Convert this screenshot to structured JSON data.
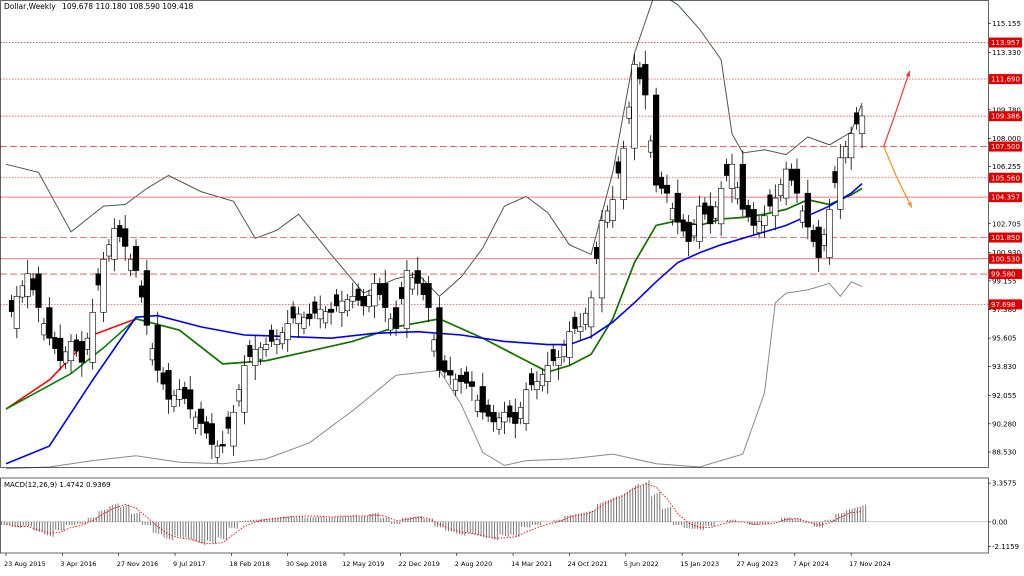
{
  "chart_data": {
    "type": "candlestick",
    "title": "Dollar,Weekly",
    "ohlc_readout": "109.678 110.180 108.590 109.418",
    "x_ticks": [
      "23 Aug 2015",
      "3 Apr 2016",
      "27 Nov 2016",
      "9 Jul 2017",
      "18 Feb 2018",
      "30 Sep 2018",
      "12 May 2019",
      "22 Dec 2019",
      "2 Aug 2020",
      "14 Mar 2021",
      "24 Oct 2021",
      "5 Jun 2022",
      "15 Jan 2023",
      "27 Aug 2023",
      "7 Apr 2024",
      "17 Nov 2024"
    ],
    "y_ticks": [
      115.155,
      113.33,
      109.78,
      108.0,
      106.255,
      102.705,
      100.93,
      99.155,
      97.38,
      95.605,
      93.83,
      92.055,
      90.28,
      88.53
    ],
    "ylim": [
      87.6,
      116.6
    ],
    "price_levels": [
      {
        "label": "113.957",
        "value": 113.957,
        "style": "dotted"
      },
      {
        "label": "111.690",
        "value": 111.69,
        "style": "dotted"
      },
      {
        "label": "109.386",
        "value": 109.386,
        "style": "dotted"
      },
      {
        "label": "107.500",
        "value": 107.5,
        "style": "dashed"
      },
      {
        "label": "105.560",
        "value": 105.56,
        "style": "dotted"
      },
      {
        "label": "104.357",
        "value": 104.357,
        "style": "solid"
      },
      {
        "label": "101.850",
        "value": 101.85,
        "style": "dashed"
      },
      {
        "label": "100.530",
        "value": 100.53,
        "style": "solid"
      },
      {
        "label": "99.580",
        "value": 99.58,
        "style": "dashed"
      },
      {
        "label": "97.698",
        "value": 97.698,
        "style": "dotted"
      }
    ],
    "price_path": [
      [
        0,
        96.2
      ],
      [
        1,
        98.2
      ],
      [
        2,
        99.6
      ],
      [
        3,
        97.5
      ],
      [
        4,
        95.6
      ],
      [
        5,
        94.2
      ],
      [
        6,
        95.4
      ],
      [
        7,
        94.1
      ],
      [
        8,
        97.2
      ],
      [
        9,
        100.5
      ],
      [
        10,
        102.4
      ],
      [
        11,
        101.3
      ],
      [
        12,
        99.8
      ],
      [
        13,
        96.4
      ],
      [
        14,
        93.6
      ],
      [
        15,
        91.8
      ],
      [
        16,
        92.4
      ],
      [
        17,
        91.2
      ],
      [
        18,
        90.3
      ],
      [
        19,
        89.0
      ],
      [
        20,
        88.9
      ],
      [
        21,
        91.0
      ],
      [
        22,
        93.9
      ],
      [
        23,
        94.9
      ],
      [
        24,
        95.2
      ],
      [
        25,
        95.5
      ],
      [
        26,
        96.5
      ],
      [
        27,
        97.1
      ],
      [
        28,
        96.8
      ],
      [
        29,
        97.4
      ],
      [
        30,
        97.2
      ],
      [
        31,
        97.9
      ],
      [
        32,
        98.2
      ],
      [
        33,
        97.6
      ],
      [
        34,
        99.0
      ],
      [
        35,
        97.5
      ],
      [
        36,
        96.2
      ],
      [
        37,
        99.8
      ],
      [
        38,
        99.0
      ],
      [
        39,
        97.5
      ],
      [
        40,
        93.6
      ],
      [
        41,
        93.3
      ],
      [
        42,
        92.9
      ],
      [
        43,
        92.6
      ],
      [
        44,
        91.0
      ],
      [
        45,
        90.4
      ],
      [
        46,
        91.0
      ],
      [
        47,
        90.3
      ],
      [
        48,
        92.4
      ],
      [
        49,
        92.9
      ],
      [
        50,
        93.9
      ],
      [
        51,
        94.4
      ],
      [
        52,
        96.0
      ],
      [
        53,
        96.3
      ],
      [
        54,
        98.1
      ],
      [
        55,
        102.9
      ],
      [
        56,
        104.2
      ],
      [
        57,
        107.4
      ],
      [
        58,
        112.6
      ],
      [
        59,
        110.7
      ],
      [
        60,
        105.1
      ],
      [
        61,
        104.6
      ],
      [
        62,
        102.8
      ],
      [
        63,
        101.6
      ],
      [
        64,
        103.8
      ],
      [
        65,
        102.7
      ],
      [
        66,
        104.9
      ],
      [
        67,
        106.4
      ],
      [
        68,
        103.6
      ],
      [
        69,
        102.6
      ],
      [
        70,
        103.2
      ],
      [
        71,
        104.3
      ],
      [
        72,
        106.1
      ],
      [
        73,
        104.6
      ],
      [
        74,
        102.5
      ],
      [
        75,
        100.6
      ],
      [
        76,
        103.6
      ],
      [
        77,
        106.8
      ],
      [
        78,
        108.3
      ],
      [
        79,
        109.4
      ]
    ],
    "moving_averages": [
      {
        "color": "#ff0000",
        "points": [
          [
            0,
            91.2
          ],
          [
            4,
            93.0
          ],
          [
            8,
            95.8
          ],
          [
            12,
            96.8
          ],
          [
            16,
            96.1
          ],
          [
            20,
            94.0
          ],
          [
            24,
            94.2
          ],
          [
            28,
            94.8
          ],
          [
            32,
            95.4
          ],
          [
            36,
            96.3
          ],
          [
            40,
            96.8
          ],
          [
            44,
            95.6
          ],
          [
            48,
            94.2
          ],
          [
            50,
            93.5
          ],
          [
            52,
            93.9
          ],
          [
            54,
            94.6
          ],
          [
            56,
            96.8
          ],
          [
            58,
            100.3
          ],
          [
            60,
            102.6
          ],
          [
            62,
            102.9
          ],
          [
            64,
            102.6
          ],
          [
            66,
            103.0
          ],
          [
            68,
            103.1
          ],
          [
            70,
            103.3
          ],
          [
            72,
            103.6
          ],
          [
            74,
            104.2
          ],
          [
            76,
            103.9
          ],
          [
            78,
            104.5
          ],
          [
            79,
            104.9
          ]
        ]
      },
      {
        "color": "#008000",
        "points": [
          [
            0,
            91.2
          ],
          [
            3,
            92.3
          ],
          [
            6,
            93.4
          ],
          [
            9,
            95.0
          ],
          [
            12,
            96.8
          ],
          [
            16,
            96.1
          ],
          [
            20,
            94.0
          ],
          [
            24,
            94.2
          ],
          [
            28,
            94.8
          ],
          [
            32,
            95.4
          ],
          [
            36,
            96.3
          ],
          [
            40,
            96.8
          ],
          [
            44,
            95.6
          ],
          [
            48,
            94.2
          ],
          [
            50,
            93.5
          ],
          [
            52,
            93.9
          ],
          [
            54,
            94.6
          ],
          [
            56,
            96.8
          ],
          [
            58,
            100.3
          ],
          [
            60,
            102.6
          ],
          [
            62,
            102.9
          ],
          [
            64,
            102.6
          ],
          [
            66,
            103.0
          ],
          [
            68,
            103.1
          ],
          [
            70,
            103.3
          ],
          [
            72,
            103.6
          ],
          [
            74,
            104.2
          ],
          [
            76,
            103.9
          ],
          [
            78,
            104.5
          ],
          [
            79,
            104.9
          ]
        ]
      },
      {
        "color": "#0000ff",
        "points": [
          [
            0,
            87.8
          ],
          [
            4,
            88.9
          ],
          [
            8,
            93.0
          ],
          [
            12,
            96.9
          ],
          [
            14,
            97.0
          ],
          [
            18,
            96.3
          ],
          [
            22,
            95.8
          ],
          [
            26,
            95.7
          ],
          [
            30,
            95.6
          ],
          [
            34,
            95.9
          ],
          [
            38,
            96.0
          ],
          [
            42,
            95.8
          ],
          [
            46,
            95.4
          ],
          [
            50,
            95.2
          ],
          [
            52,
            95.2
          ],
          [
            54,
            95.7
          ],
          [
            56,
            96.6
          ],
          [
            58,
            97.8
          ],
          [
            60,
            99.1
          ],
          [
            62,
            100.3
          ],
          [
            64,
            100.9
          ],
          [
            66,
            101.4
          ],
          [
            68,
            101.8
          ],
          [
            70,
            102.2
          ],
          [
            72,
            102.6
          ],
          [
            74,
            103.2
          ],
          [
            76,
            103.8
          ],
          [
            78,
            104.6
          ],
          [
            79,
            105.2
          ]
        ]
      }
    ],
    "bollinger_bands": {
      "color": "#555555",
      "upper": [
        [
          0,
          106.4
        ],
        [
          3,
          105.9
        ],
        [
          6,
          102.2
        ],
        [
          9,
          103.8
        ],
        [
          11,
          103.9
        ],
        [
          13,
          104.9
        ],
        [
          15,
          105.7
        ],
        [
          18,
          104.7
        ],
        [
          21,
          104.1
        ],
        [
          23,
          101.8
        ],
        [
          25,
          102.3
        ],
        [
          27,
          103.3
        ],
        [
          30,
          100.8
        ],
        [
          33,
          98.4
        ],
        [
          36,
          99.3
        ],
        [
          38,
          99.6
        ],
        [
          40,
          98.2
        ],
        [
          42,
          99.4
        ],
        [
          44,
          101.2
        ],
        [
          46,
          103.8
        ],
        [
          48,
          104.4
        ],
        [
          50,
          103.4
        ],
        [
          52,
          101.4
        ],
        [
          54,
          100.8
        ],
        [
          56,
          105.9
        ],
        [
          58,
          113.3
        ],
        [
          60,
          117.2
        ],
        [
          62,
          116.3
        ],
        [
          64,
          114.8
        ],
        [
          66,
          112.9
        ],
        [
          67,
          108.3
        ],
        [
          68,
          107.1
        ],
        [
          70,
          107.3
        ],
        [
          72,
          107.0
        ],
        [
          74,
          108.1
        ],
        [
          76,
          107.6
        ],
        [
          78,
          108.4
        ],
        [
          79,
          110.2
        ]
      ],
      "lower": [
        [
          0,
          87.5
        ],
        [
          4,
          87.6
        ],
        [
          8,
          88.0
        ],
        [
          12,
          88.3
        ],
        [
          16,
          87.9
        ],
        [
          20,
          87.8
        ],
        [
          24,
          88.1
        ],
        [
          28,
          89.1
        ],
        [
          32,
          91.1
        ],
        [
          36,
          93.3
        ],
        [
          40,
          93.6
        ],
        [
          42,
          91.5
        ],
        [
          44,
          88.5
        ],
        [
          46,
          87.7
        ],
        [
          48,
          88.0
        ],
        [
          52,
          88.1
        ],
        [
          56,
          88.4
        ],
        [
          60,
          87.8
        ],
        [
          64,
          87.6
        ],
        [
          68,
          88.4
        ],
        [
          70,
          92.2
        ],
        [
          71,
          97.8
        ],
        [
          72,
          98.4
        ],
        [
          74,
          98.6
        ],
        [
          76,
          99.0
        ],
        [
          77,
          98.2
        ],
        [
          78,
          99.1
        ],
        [
          79,
          98.8
        ]
      ],
      "mid": [
        [
          0,
          97.0
        ],
        [
          4,
          96.5
        ],
        [
          8,
          97.0
        ],
        [
          12,
          98.1
        ],
        [
          16,
          98.7
        ],
        [
          20,
          97.5
        ],
        [
          24,
          97.0
        ],
        [
          28,
          97.6
        ],
        [
          32,
          97.8
        ],
        [
          36,
          98.3
        ],
        [
          40,
          97.3
        ],
        [
          44,
          95.4
        ],
        [
          48,
          95.0
        ],
        [
          52,
          95.7
        ],
        [
          56,
          97.0
        ],
        [
          58,
          100.0
        ],
        [
          62,
          102.4
        ],
        [
          66,
          103.3
        ],
        [
          70,
          103.0
        ],
        [
          74,
          104.0
        ],
        [
          78,
          105.2
        ]
      ]
    },
    "projection_arrows": [
      {
        "color": "#ff3333",
        "from": [
          81,
          107.5
        ],
        "mid": [
          82,
          109.4
        ],
        "to": [
          83.4,
          112.2
        ]
      },
      {
        "color": "#ff8c1a",
        "from": [
          81,
          107.5
        ],
        "mid": [
          82.2,
          105.6
        ],
        "to": [
          83.6,
          103.7
        ]
      }
    ],
    "subchart": {
      "label": "MACD(12,26,9) 1.4742 0.9369",
      "y_ticks": [
        3.3575,
        0.0,
        -2.1159
      ],
      "ylim": [
        -2.7,
        3.8
      ],
      "histogram": [
        -0.3,
        -0.5,
        -0.4,
        -0.9,
        -1.3,
        -0.8,
        -0.3,
        -0.2,
        0.4,
        1.1,
        1.6,
        1.5,
        0.8,
        -0.3,
        -1.1,
        -1.6,
        -1.4,
        -1.6,
        -2.0,
        -1.9,
        -1.6,
        -0.6,
        0.1,
        0.2,
        0.3,
        0.4,
        0.5,
        0.5,
        0.4,
        0.5,
        0.4,
        0.5,
        0.6,
        0.5,
        0.8,
        0.4,
        -0.2,
        0.4,
        0.5,
        0.3,
        -0.5,
        -0.9,
        -1.2,
        -1.1,
        -1.4,
        -1.6,
        -1.3,
        -1.3,
        -0.5,
        -0.3,
        0.0,
        0.2,
        0.6,
        0.8,
        1.0,
        1.8,
        2.2,
        2.6,
        3.3,
        3.6,
        2.6,
        1.3,
        -0.3,
        -0.6,
        -0.7,
        -0.4,
        0.0,
        0.2,
        0.0,
        -0.3,
        -0.2,
        0.0,
        0.4,
        0.3,
        -0.1,
        -0.5,
        0.2,
        0.8,
        1.2,
        1.5
      ],
      "signal": [
        -0.2,
        -0.4,
        -0.4,
        -0.7,
        -1.0,
        -0.9,
        -0.5,
        -0.3,
        0.1,
        0.7,
        1.2,
        1.5,
        1.2,
        0.4,
        -0.4,
        -1.1,
        -1.4,
        -1.5,
        -1.8,
        -1.9,
        -1.8,
        -1.1,
        -0.4,
        0.0,
        0.2,
        0.3,
        0.4,
        0.5,
        0.5,
        0.5,
        0.4,
        0.5,
        0.5,
        0.5,
        0.6,
        0.5,
        0.1,
        0.2,
        0.4,
        0.3,
        -0.2,
        -0.6,
        -0.9,
        -1.0,
        -1.2,
        -1.4,
        -1.4,
        -1.3,
        -0.9,
        -0.5,
        -0.2,
        0.0,
        0.4,
        0.6,
        0.8,
        1.4,
        1.9,
        2.3,
        2.9,
        3.3,
        3.0,
        2.0,
        0.7,
        -0.1,
        -0.5,
        -0.5,
        -0.2,
        0.0,
        0.0,
        -0.2,
        -0.2,
        -0.1,
        0.2,
        0.3,
        0.0,
        -0.3,
        -0.1,
        0.4,
        0.8,
        0.9
      ]
    },
    "colors": {
      "grid": "#b0b0b0",
      "level_line": "#e05050",
      "level_label_bg": "#e00000",
      "candle": "#000000",
      "axis_text": "#000000"
    }
  }
}
